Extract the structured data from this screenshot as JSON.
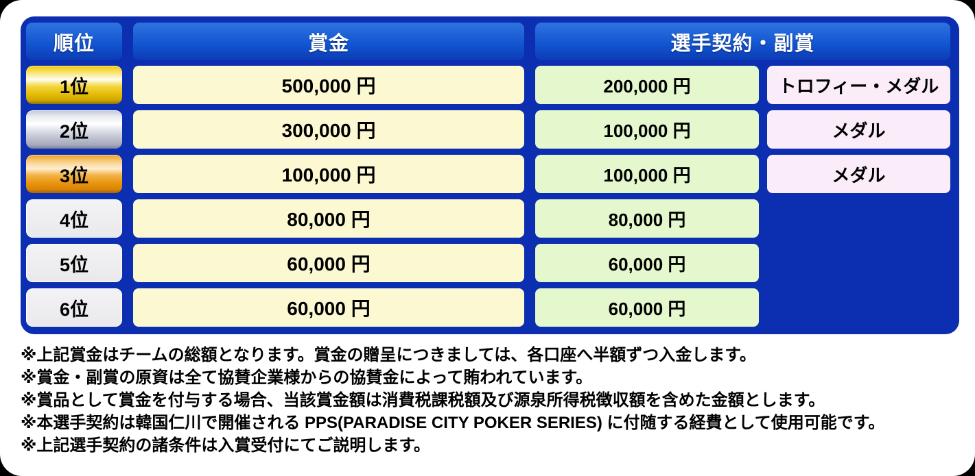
{
  "table": {
    "headers": {
      "rank": "順位",
      "prize": "賞金",
      "contract_subprize": "選手契約・副賞"
    },
    "rows": [
      {
        "rank": "1位",
        "medal": "gold",
        "prize": "500,000 円",
        "contract": "200,000 円",
        "subprize": "トロフィー・メダル"
      },
      {
        "rank": "2位",
        "medal": "silver",
        "prize": "300,000 円",
        "contract": "100,000 円",
        "subprize": "メダル"
      },
      {
        "rank": "3位",
        "medal": "bronze",
        "prize": "100,000 円",
        "contract": "100,000 円",
        "subprize": "メダル"
      },
      {
        "rank": "4位",
        "medal": "none",
        "prize": "80,000 円",
        "contract": "80,000 円",
        "subprize": ""
      },
      {
        "rank": "5位",
        "medal": "none",
        "prize": "60,000 円",
        "contract": "60,000 円",
        "subprize": ""
      },
      {
        "rank": "6位",
        "medal": "none",
        "prize": "60,000 円",
        "contract": "60,000 円",
        "subprize": ""
      }
    ]
  },
  "notes": [
    "※上記賞金はチームの総額となります。賞金の贈呈につきましては、各口座へ半額ずつ入金します。",
    "※賞金・副賞の原資は全て協賛企業様からの協賛金によって賄われています。",
    "※賞品として賞金を付与する場合、当該賞金額は消費税課税額及び源泉所得税徴収額を含めた金額とします。",
    "※本選手契約は韓国仁川で開催される PPS(PARADISE CITY POKER SERIES) に付随する経費として使用可能です。",
    "※上記選手契約の諸条件は入賞受付にてご説明します。"
  ],
  "colors": {
    "panel_blue": "#0c2eb1",
    "header_gradient_top": "#2e73df",
    "header_gradient_bottom": "#0b3cb4",
    "prize_cell": "#fcf8d2",
    "contract_cell": "#e4f7cd",
    "subprize_cell": "#fbecf9",
    "gold": "#edc803",
    "silver": "#c2c5d3",
    "bronze": "#ef9f18",
    "plain_rank": "#ededf0"
  }
}
